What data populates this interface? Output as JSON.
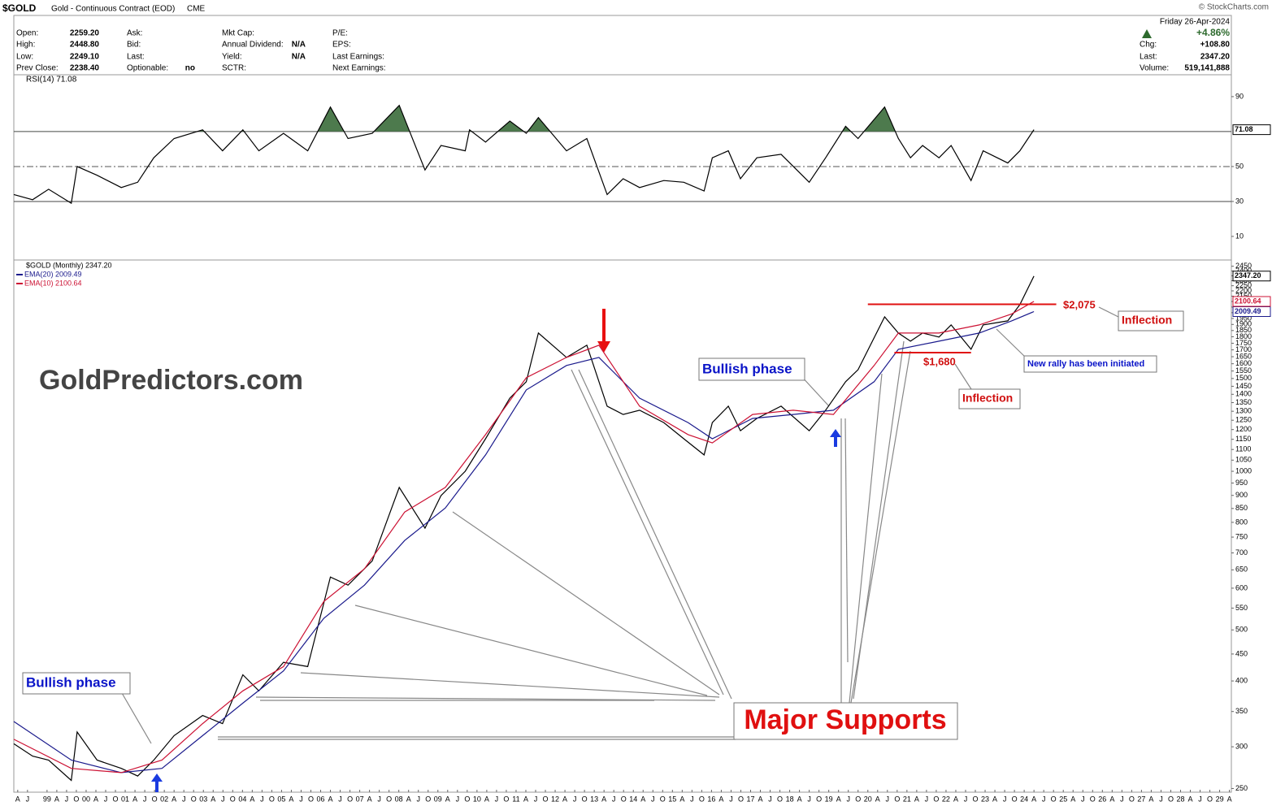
{
  "header": {
    "symbol": "$GOLD",
    "description": "Gold - Continuous Contract (EOD)",
    "exchange": "CME",
    "watermark": "© StockCharts.com",
    "columns": [
      [
        [
          "Open:",
          "2259.20"
        ],
        [
          "High:",
          "2448.80"
        ],
        [
          "Low:",
          "2249.10"
        ],
        [
          "Prev Close:",
          "2238.40"
        ]
      ],
      [
        [
          "Ask:"
        ],
        [
          "Bid:"
        ],
        [
          "Last:"
        ],
        [
          "Optionable:",
          "no"
        ]
      ],
      [
        [
          "Mkt Cap:"
        ],
        [
          "Annual Dividend:",
          "N/A"
        ],
        [
          "Yield:",
          "N/A"
        ],
        [
          "SCTR:"
        ]
      ],
      [
        [
          "P/E:"
        ],
        [
          "EPS:"
        ],
        [
          "Last Earnings:"
        ],
        [
          "Next Earnings:"
        ]
      ]
    ],
    "right": {
      "date": "Friday  26-Apr-2024",
      "pct": "+4.86%",
      "rows": [
        [
          "Chg:",
          "+108.80"
        ],
        [
          "Last:",
          "2347.20"
        ],
        [
          "Volume:",
          "519,141,888"
        ]
      ]
    }
  },
  "chart_data": [
    {
      "type": "line",
      "title": "RSI(14) 71.08",
      "xlim": [
        1998.15,
        2029.3
      ],
      "ylim": [
        -3.5,
        98.8
      ],
      "yticks": [
        10,
        30,
        50,
        90
      ],
      "levels": [
        70,
        30
      ],
      "midline": 50,
      "overbought": 70,
      "overbought_color": "#4d7a4d",
      "series": [
        {
          "name": "RSI(14)",
          "color": "#000000",
          "x": [
            1998.15,
            1998.63,
            1999.04,
            1999.62,
            1999.77,
            2000.28,
            2000.9,
            2001.32,
            2001.73,
            2002.25,
            2002.98,
            2003.49,
            2004.01,
            2004.42,
            2005.05,
            2005.67,
            2006.25,
            2006.7,
            2007.32,
            2008.01,
            2008.67,
            2009.08,
            2009.7,
            2009.81,
            2010.22,
            2010.84,
            2011.26,
            2011.57,
            2012.29,
            2012.81,
            2013.33,
            2013.74,
            2014.16,
            2014.78,
            2015.29,
            2015.81,
            2016.02,
            2016.43,
            2016.74,
            2017.16,
            2017.78,
            2018.5,
            2018.92,
            2019.43,
            2019.75,
            2020.43,
            2020.78,
            2021.09,
            2021.4,
            2021.82,
            2022.13,
            2022.64,
            2022.95,
            2023.58,
            2023.89,
            2024.25
          ],
          "values": [
            34,
            31,
            37,
            29,
            50,
            45,
            38,
            41,
            55,
            66,
            71,
            59,
            71,
            59,
            69,
            59,
            84,
            66,
            69,
            85,
            48,
            62,
            59,
            71,
            64,
            76,
            69,
            78,
            59,
            66,
            34,
            43,
            38,
            42,
            41,
            36,
            55,
            59,
            43,
            55,
            57,
            41,
            55,
            73,
            66,
            84,
            66,
            55,
            62,
            55,
            62,
            42,
            59,
            52,
            59,
            71.08
          ]
        }
      ]
    },
    {
      "type": "line",
      "log": true,
      "xlim": [
        1998.15,
        2029.3
      ],
      "ylim": [
        246,
        2500
      ],
      "yticks": [
        250,
        300,
        350,
        400,
        450,
        500,
        550,
        600,
        650,
        700,
        750,
        800,
        850,
        900,
        950,
        1000,
        1050,
        1100,
        1150,
        1200,
        1250,
        1300,
        1350,
        1400,
        1450,
        1500,
        1550,
        1600,
        1650,
        1700,
        1750,
        1800,
        1850,
        1900,
        1950,
        2000,
        2050,
        2100,
        2150,
        2200,
        2250,
        2300,
        2350,
        2400,
        2450
      ],
      "xticks": [
        {
          "value": 1998.25,
          "label": "A"
        },
        {
          "value": 1998.5,
          "label": "J"
        },
        {
          "value": 1999,
          "label": "99"
        },
        {
          "value": 1999.25,
          "label": "A"
        },
        {
          "value": 1999.5,
          "label": "J"
        },
        {
          "value": 1999.75,
          "label": "O"
        },
        {
          "value": 2000,
          "label": "00"
        },
        {
          "value": 2000.25,
          "label": "A"
        },
        {
          "value": 2000.5,
          "label": "J"
        },
        {
          "value": 2000.75,
          "label": "O"
        },
        {
          "value": 2001,
          "label": "01"
        },
        {
          "value": 2001.25,
          "label": "A"
        },
        {
          "value": 2001.5,
          "label": "J"
        },
        {
          "value": 2001.75,
          "label": "O"
        },
        {
          "value": 2002,
          "label": "02"
        },
        {
          "value": 2002.25,
          "label": "A"
        },
        {
          "value": 2002.5,
          "label": "J"
        },
        {
          "value": 2002.75,
          "label": "O"
        },
        {
          "value": 2003,
          "label": "03"
        },
        {
          "value": 2003.25,
          "label": "A"
        },
        {
          "value": 2003.5,
          "label": "J"
        },
        {
          "value": 2003.75,
          "label": "O"
        },
        {
          "value": 2004,
          "label": "04"
        },
        {
          "value": 2004.25,
          "label": "A"
        },
        {
          "value": 2004.5,
          "label": "J"
        },
        {
          "value": 2004.75,
          "label": "O"
        },
        {
          "value": 2005,
          "label": "05"
        },
        {
          "value": 2005.25,
          "label": "A"
        },
        {
          "value": 2005.5,
          "label": "J"
        },
        {
          "value": 2005.75,
          "label": "O"
        },
        {
          "value": 2006,
          "label": "06"
        },
        {
          "value": 2006.25,
          "label": "A"
        },
        {
          "value": 2006.5,
          "label": "J"
        },
        {
          "value": 2006.75,
          "label": "O"
        },
        {
          "value": 2007,
          "label": "07"
        },
        {
          "value": 2007.25,
          "label": "A"
        },
        {
          "value": 2007.5,
          "label": "J"
        },
        {
          "value": 2007.75,
          "label": "O"
        },
        {
          "value": 2008,
          "label": "08"
        },
        {
          "value": 2008.25,
          "label": "A"
        },
        {
          "value": 2008.5,
          "label": "J"
        },
        {
          "value": 2008.75,
          "label": "O"
        },
        {
          "value": 2009,
          "label": "09"
        },
        {
          "value": 2009.25,
          "label": "A"
        },
        {
          "value": 2009.5,
          "label": "J"
        },
        {
          "value": 2009.75,
          "label": "O"
        },
        {
          "value": 2010,
          "label": "10"
        },
        {
          "value": 2010.25,
          "label": "A"
        },
        {
          "value": 2010.5,
          "label": "J"
        },
        {
          "value": 2010.75,
          "label": "O"
        },
        {
          "value": 2011,
          "label": "11"
        },
        {
          "value": 2011.25,
          "label": "A"
        },
        {
          "value": 2011.5,
          "label": "J"
        },
        {
          "value": 2011.75,
          "label": "O"
        },
        {
          "value": 2012,
          "label": "12"
        },
        {
          "value": 2012.25,
          "label": "A"
        },
        {
          "value": 2012.5,
          "label": "J"
        },
        {
          "value": 2012.75,
          "label": "O"
        },
        {
          "value": 2013,
          "label": "13"
        },
        {
          "value": 2013.25,
          "label": "A"
        },
        {
          "value": 2013.5,
          "label": "J"
        },
        {
          "value": 2013.75,
          "label": "O"
        },
        {
          "value": 2014,
          "label": "14"
        },
        {
          "value": 2014.25,
          "label": "A"
        },
        {
          "value": 2014.5,
          "label": "J"
        },
        {
          "value": 2014.75,
          "label": "O"
        },
        {
          "value": 2015,
          "label": "15"
        },
        {
          "value": 2015.25,
          "label": "A"
        },
        {
          "value": 2015.5,
          "label": "J"
        },
        {
          "value": 2015.75,
          "label": "O"
        },
        {
          "value": 2016,
          "label": "16"
        },
        {
          "value": 2016.25,
          "label": "A"
        },
        {
          "value": 2016.5,
          "label": "J"
        },
        {
          "value": 2016.75,
          "label": "O"
        },
        {
          "value": 2017,
          "label": "17"
        },
        {
          "value": 2017.25,
          "label": "A"
        },
        {
          "value": 2017.5,
          "label": "J"
        },
        {
          "value": 2017.75,
          "label": "O"
        },
        {
          "value": 2018,
          "label": "18"
        },
        {
          "value": 2018.25,
          "label": "A"
        },
        {
          "value": 2018.5,
          "label": "J"
        },
        {
          "value": 2018.75,
          "label": "O"
        },
        {
          "value": 2019,
          "label": "19"
        },
        {
          "value": 2019.25,
          "label": "A"
        },
        {
          "value": 2019.5,
          "label": "J"
        },
        {
          "value": 2019.75,
          "label": "O"
        },
        {
          "value": 2020,
          "label": "20"
        },
        {
          "value": 2020.25,
          "label": "A"
        },
        {
          "value": 2020.5,
          "label": "J"
        },
        {
          "value": 2020.75,
          "label": "O"
        },
        {
          "value": 2021,
          "label": "21"
        },
        {
          "value": 2021.25,
          "label": "A"
        },
        {
          "value": 2021.5,
          "label": "J"
        },
        {
          "value": 2021.75,
          "label": "O"
        },
        {
          "value": 2022,
          "label": "22"
        },
        {
          "value": 2022.25,
          "label": "A"
        },
        {
          "value": 2022.5,
          "label": "J"
        },
        {
          "value": 2022.75,
          "label": "O"
        },
        {
          "value": 2023,
          "label": "23"
        },
        {
          "value": 2023.25,
          "label": "A"
        },
        {
          "value": 2023.5,
          "label": "J"
        },
        {
          "value": 2023.75,
          "label": "O"
        },
        {
          "value": 2024,
          "label": "24"
        },
        {
          "value": 2024.25,
          "label": "A"
        },
        {
          "value": 2024.5,
          "label": "J"
        },
        {
          "value": 2024.75,
          "label": "O"
        },
        {
          "value": 2025,
          "label": "25"
        },
        {
          "value": 2025.25,
          "label": "A"
        },
        {
          "value": 2025.5,
          "label": "J"
        },
        {
          "value": 2025.75,
          "label": "O"
        },
        {
          "value": 2026,
          "label": "26"
        },
        {
          "value": 2026.25,
          "label": "A"
        },
        {
          "value": 2026.5,
          "label": "J"
        },
        {
          "value": 2026.75,
          "label": "O"
        },
        {
          "value": 2027,
          "label": "27"
        },
        {
          "value": 2027.25,
          "label": "A"
        },
        {
          "value": 2027.5,
          "label": "J"
        },
        {
          "value": 2027.75,
          "label": "O"
        },
        {
          "value": 2028,
          "label": "28"
        },
        {
          "value": 2028.25,
          "label": "A"
        },
        {
          "value": 2028.5,
          "label": "J"
        },
        {
          "value": 2028.75,
          "label": "O"
        },
        {
          "value": 2029,
          "label": "29"
        },
        {
          "value": 2029.25,
          "label": "A"
        }
      ],
      "series": [
        {
          "name": "$GOLD (Monthly) 2347.20",
          "color": "#000000",
          "last_label": "2347.20",
          "x": [
            1998.15,
            1998.63,
            1999.04,
            1999.62,
            1999.77,
            2000.28,
            2000.9,
            2001.32,
            2001.73,
            2002.25,
            2002.98,
            2003.49,
            2004.01,
            2004.42,
            2005.05,
            2005.67,
            2006.25,
            2006.7,
            2007.32,
            2008.01,
            2008.67,
            2009.08,
            2009.7,
            2010.22,
            2010.84,
            2011.26,
            2011.57,
            2012.29,
            2012.81,
            2013.33,
            2013.74,
            2014.16,
            2014.78,
            2015.29,
            2015.81,
            2016.02,
            2016.43,
            2016.74,
            2017.16,
            2017.78,
            2018.5,
            2018.92,
            2019.43,
            2019.75,
            2020.43,
            2020.78,
            2021.09,
            2021.4,
            2021.82,
            2022.13,
            2022.64,
            2022.95,
            2023.58,
            2023.89,
            2024.25
          ],
          "values": [
            304,
            288,
            283,
            259,
            320,
            283,
            273,
            264,
            283,
            315,
            344,
            332,
            411,
            383,
            434,
            426,
            630,
            608,
            676,
            932,
            780,
            899,
            1000,
            1153,
            1377,
            1479,
            1830,
            1645,
            1735,
            1329,
            1282,
            1306,
            1237,
            1153,
            1074,
            1237,
            1329,
            1194,
            1260,
            1329,
            1194,
            1306,
            1479,
            1559,
            1964,
            1830,
            1766,
            1830,
            1798,
            1896,
            1704,
            1896,
            1930,
            2072,
            2347.2
          ]
        },
        {
          "name": "EMA(20) 2009.49",
          "color": "#1a1a8c",
          "last_label": "2009.49",
          "x": [
            1998.15,
            1999.62,
            2000.9,
            2001.94,
            2002.98,
            2004.01,
            2005.05,
            2006.08,
            2007.12,
            2008.15,
            2009.19,
            2010.22,
            2011.26,
            2012.29,
            2013.12,
            2014.16,
            2015.4,
            2016.02,
            2017.05,
            2018.09,
            2019.12,
            2020.16,
            2020.78,
            2021.82,
            2022.85,
            2023.68,
            2024.25
          ],
          "values": [
            335,
            283,
            268,
            273,
            315,
            363,
            418,
            526,
            608,
            739,
            852,
            1074,
            1427,
            1588,
            1645,
            1377,
            1237,
            1153,
            1260,
            1282,
            1306,
            1479,
            1704,
            1766,
            1830,
            1930,
            2009.49
          ]
        },
        {
          "name": "EMA(10) 2100.64",
          "color": "#cc1133",
          "last_label": "2100.64",
          "x": [
            1998.15,
            1999.62,
            2000.9,
            2001.94,
            2002.98,
            2004.01,
            2005.05,
            2006.08,
            2007.12,
            2008.15,
            2009.19,
            2010.22,
            2011.26,
            2012.29,
            2013.12,
            2014.16,
            2015.4,
            2016.02,
            2017.05,
            2018.09,
            2019.12,
            2020.16,
            2020.78,
            2021.82,
            2022.85,
            2023.68,
            2024.25
          ],
          "values": [
            310,
            273,
            268,
            283,
            332,
            383,
            426,
            566,
            653,
            837,
            932,
            1174,
            1505,
            1645,
            1735,
            1329,
            1174,
            1132,
            1282,
            1306,
            1282,
            1588,
            1830,
            1830,
            1896,
            1989,
            2100.64
          ]
        }
      ],
      "annotations": [
        {
          "text": "GoldPredictors.com"
        },
        {
          "text": "Bullish phase"
        },
        {
          "text": "Bullish phase"
        },
        {
          "text": "Major Supports"
        },
        {
          "text": "$2,075",
          "value": 2075,
          "from": 2020.0,
          "to": 2024.82
        },
        {
          "text": "$1,680",
          "value": 1680,
          "from": 2020.68,
          "to": 2022.64
        },
        {
          "text": "Inflection"
        },
        {
          "text": "Inflection"
        },
        {
          "text": "New rally has been initiated"
        }
      ]
    }
  ]
}
